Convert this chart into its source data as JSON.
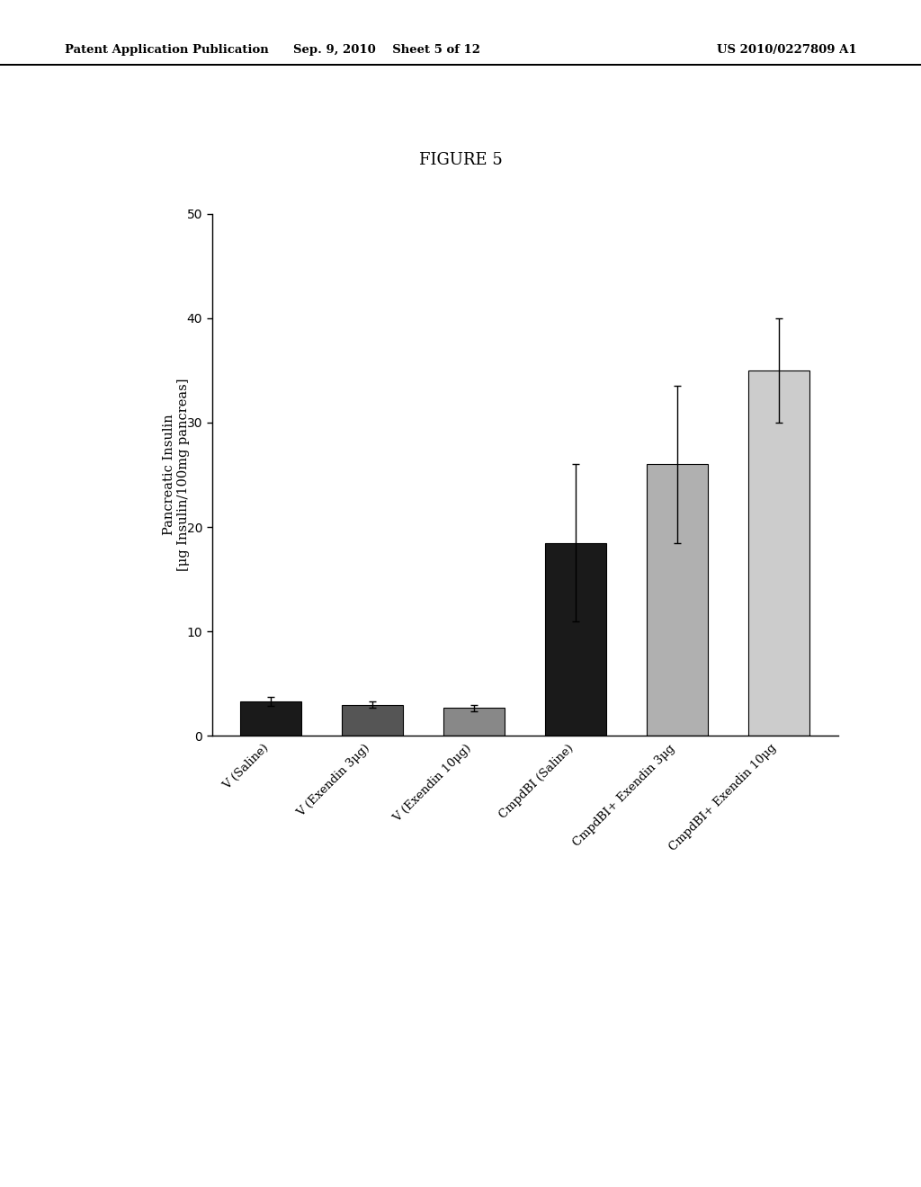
{
  "categories": [
    "V (Saline)",
    "V (Exendin 3μg)",
    "V (Exendin 10μg)",
    "CmpdBI (Saline)",
    "CmpdBI+ Exendin 3μg",
    "CmpdBI+ Exendin 10μg"
  ],
  "values": [
    3.3,
    3.0,
    2.7,
    18.5,
    26.0,
    35.0
  ],
  "errors": [
    0.4,
    0.3,
    0.3,
    7.5,
    7.5,
    5.0
  ],
  "bar_colors": [
    "#1a1a1a",
    "#555555",
    "#888888",
    "#1a1a1a",
    "#b0b0b0",
    "#cccccc"
  ],
  "bar_edgecolors": [
    "#000000",
    "#000000",
    "#000000",
    "#000000",
    "#000000",
    "#000000"
  ],
  "ylim": [
    0,
    50
  ],
  "yticks": [
    0,
    10,
    20,
    30,
    40,
    50
  ],
  "ylabel_line1": "Pancreatic Insulin",
  "ylabel_line2": "[μg Insulin/100mg pancreas]",
  "figure_title": "FIGURE 5",
  "header_left": "Patent Application Publication",
  "header_center": "Sep. 9, 2010    Sheet 5 of 12",
  "header_right": "US 2010/0227809 A1",
  "background_color": "#ffffff",
  "bar_width": 0.6
}
